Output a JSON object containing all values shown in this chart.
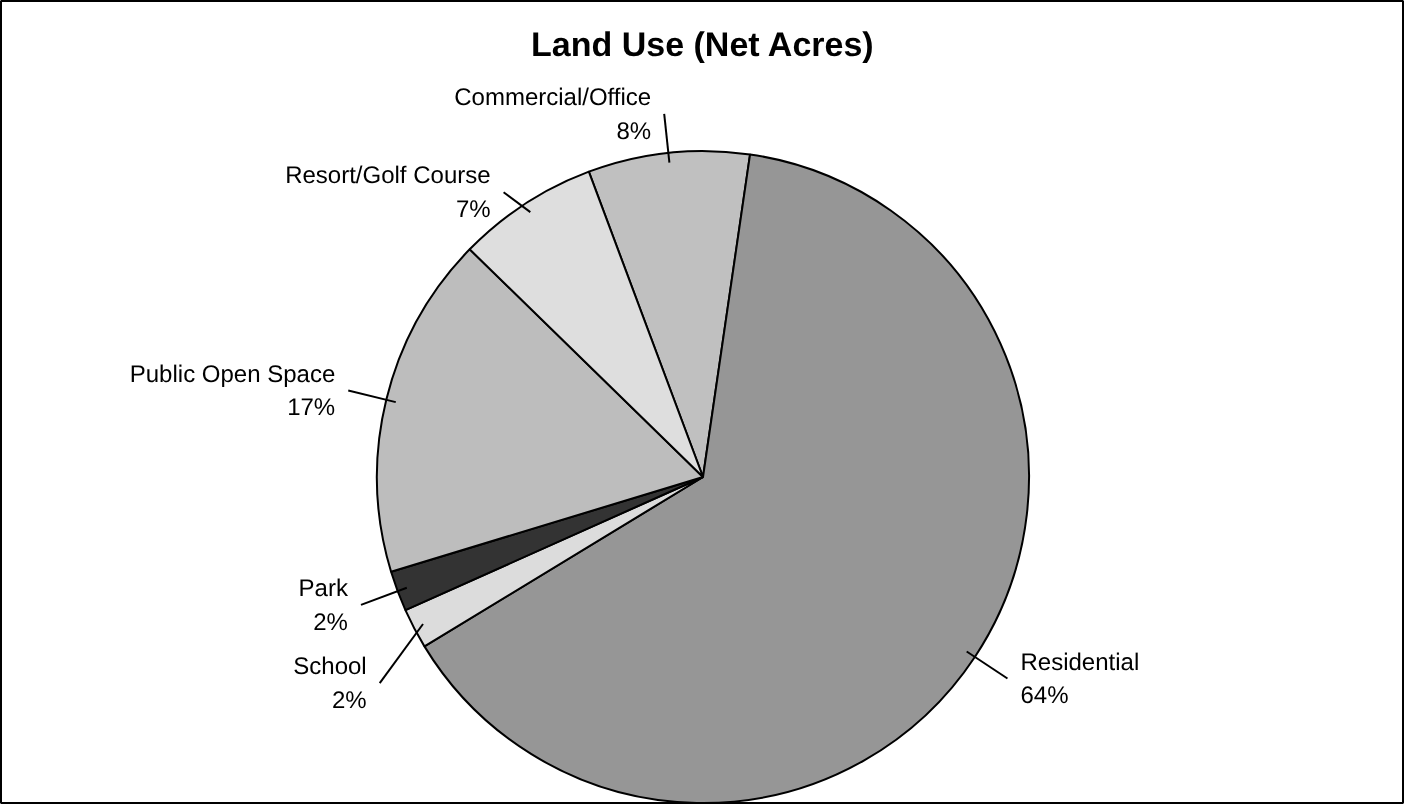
{
  "chart_data": {
    "type": "pie",
    "title": "Land Use (Net Acres)",
    "categories": [
      "Commercial/Office",
      "Residential",
      "School",
      "Park",
      "Public Open Space",
      "Resort/Golf Course"
    ],
    "values": [
      8,
      64,
      2,
      2,
      17,
      7
    ],
    "value_labels": [
      "8%",
      "64%",
      "2%",
      "2%",
      "17%",
      "7%"
    ],
    "colors": [
      "#c0c0c0",
      "#969696",
      "#dcdcdc",
      "#333333",
      "#bdbdbd",
      "#dedede"
    ]
  }
}
